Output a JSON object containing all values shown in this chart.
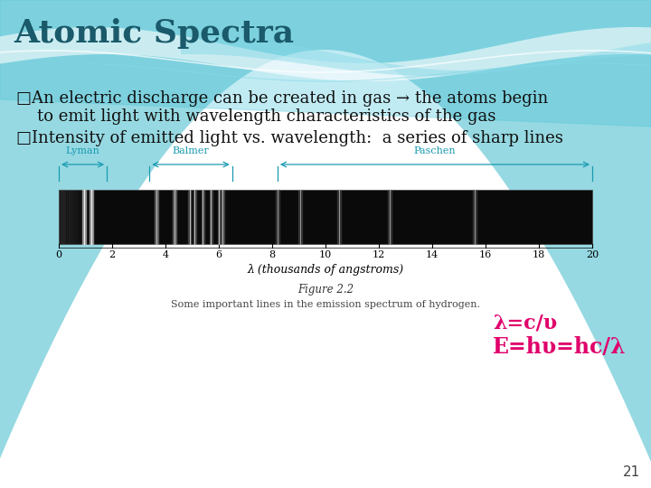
{
  "title": "Atomic Spectra",
  "title_color": "#1a5a6a",
  "title_fontsize": 26,
  "bg_color": "#ffffff",
  "bullet1_line1": "□An electric discharge can be created in gas → the atoms begin",
  "bullet1_line2": "    to emit light with wavelength characteristics of the gas",
  "bullet2": "□Intensity of emitted light vs. wavelength:  a series of sharp lines",
  "bullet_color": "#111111",
  "bullet_fontsize": 13,
  "formula1": "λ=c/υ",
  "formula2": "E=hυ=hc/λ",
  "formula_color": "#e0006a",
  "formula_fontsize": 16,
  "page_num": "21",
  "page_num_color": "#444444",
  "page_num_fontsize": 11,
  "figure_caption": "Figure 2.2",
  "figure_subcaption": "Some important lines in the emission spectrum of hydrogen.",
  "lyman_label": "Lyman",
  "balmer_label": "Balmer",
  "paschen_label": "Paschen",
  "series_label_color": "#1a9ab0",
  "axis_label": "λ (thousands of angstroms)",
  "tick_vals": [
    0,
    2,
    4,
    6,
    8,
    10,
    12,
    14,
    16,
    18,
    20
  ],
  "wave_teal_light": "#85d8e8",
  "wave_teal_mid": "#50c0d0",
  "wave_teal_dark": "#30a8bc",
  "wave_white": "#e8f8fc"
}
